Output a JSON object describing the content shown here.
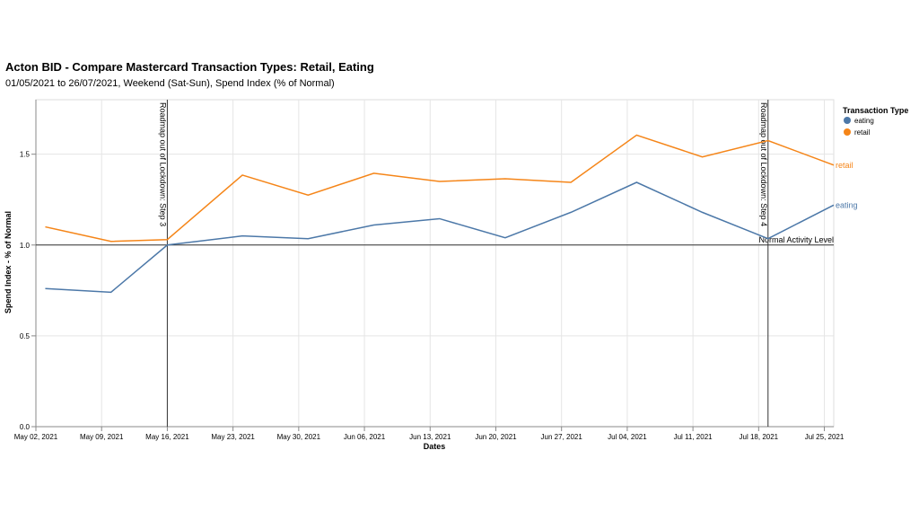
{
  "chart_data": {
    "type": "line",
    "title": "Acton BID - Compare Mastercard Transaction Types: Retail, Eating",
    "subtitle": "01/05/2021 to 26/07/2021, Weekend (Sat-Sun), Spend Index (% of Normal)",
    "x_label": "Dates",
    "y_label": "Spend Index - % of Normal",
    "x": [
      "2021-05-03",
      "2021-05-10",
      "2021-05-16",
      "2021-05-24",
      "2021-05-31",
      "2021-06-07",
      "2021-06-14",
      "2021-06-21",
      "2021-06-28",
      "2021-07-05",
      "2021-07-12",
      "2021-07-19",
      "2021-07-26"
    ],
    "series": [
      {
        "name": "eating",
        "color": "#4c78a8",
        "values": [
          0.76,
          0.74,
          1.0,
          1.05,
          1.035,
          1.11,
          1.145,
          1.04,
          1.18,
          1.345,
          1.18,
          1.035,
          1.22
        ]
      },
      {
        "name": "retail",
        "color": "#f58518",
        "values": [
          1.1,
          1.02,
          1.03,
          1.385,
          1.275,
          1.395,
          1.35,
          1.365,
          1.345,
          1.605,
          1.485,
          1.575,
          1.44
        ]
      }
    ],
    "xlim": [
      "2021-05-02",
      "2021-07-26"
    ],
    "ylim": [
      0,
      1.8
    ],
    "xticks": [
      {
        "value": "2021-05-02",
        "label": "May 02, 2021"
      },
      {
        "value": "2021-05-09",
        "label": "May 09, 2021"
      },
      {
        "value": "2021-05-16",
        "label": "May 16, 2021"
      },
      {
        "value": "2021-05-23",
        "label": "May 23, 2021"
      },
      {
        "value": "2021-05-30",
        "label": "May 30, 2021"
      },
      {
        "value": "2021-06-06",
        "label": "Jun 06, 2021"
      },
      {
        "value": "2021-06-13",
        "label": "Jun 13, 2021"
      },
      {
        "value": "2021-06-20",
        "label": "Jun 20, 2021"
      },
      {
        "value": "2021-06-27",
        "label": "Jun 27, 2021"
      },
      {
        "value": "2021-07-04",
        "label": "Jul 04, 2021"
      },
      {
        "value": "2021-07-11",
        "label": "Jul 11, 2021"
      },
      {
        "value": "2021-07-18",
        "label": "Jul 18, 2021"
      },
      {
        "value": "2021-07-25",
        "label": "Jul 25, 2021"
      }
    ],
    "yticks": [
      {
        "value": 0,
        "label": "0.0"
      },
      0.5,
      {
        "value": 1,
        "label": "1.0"
      },
      1.5
    ],
    "grid": true,
    "legend_title": "Transaction Type",
    "legend": "top-right",
    "vrules": [
      {
        "x": "2021-05-16",
        "label": "Roadmap out of Lockdown: Step 3"
      },
      {
        "x": "2021-07-19",
        "label": "Roadmap out of Lockdown: Step 4"
      }
    ],
    "hrule": {
      "y": 1,
      "label": "Normal Activity Level"
    }
  }
}
